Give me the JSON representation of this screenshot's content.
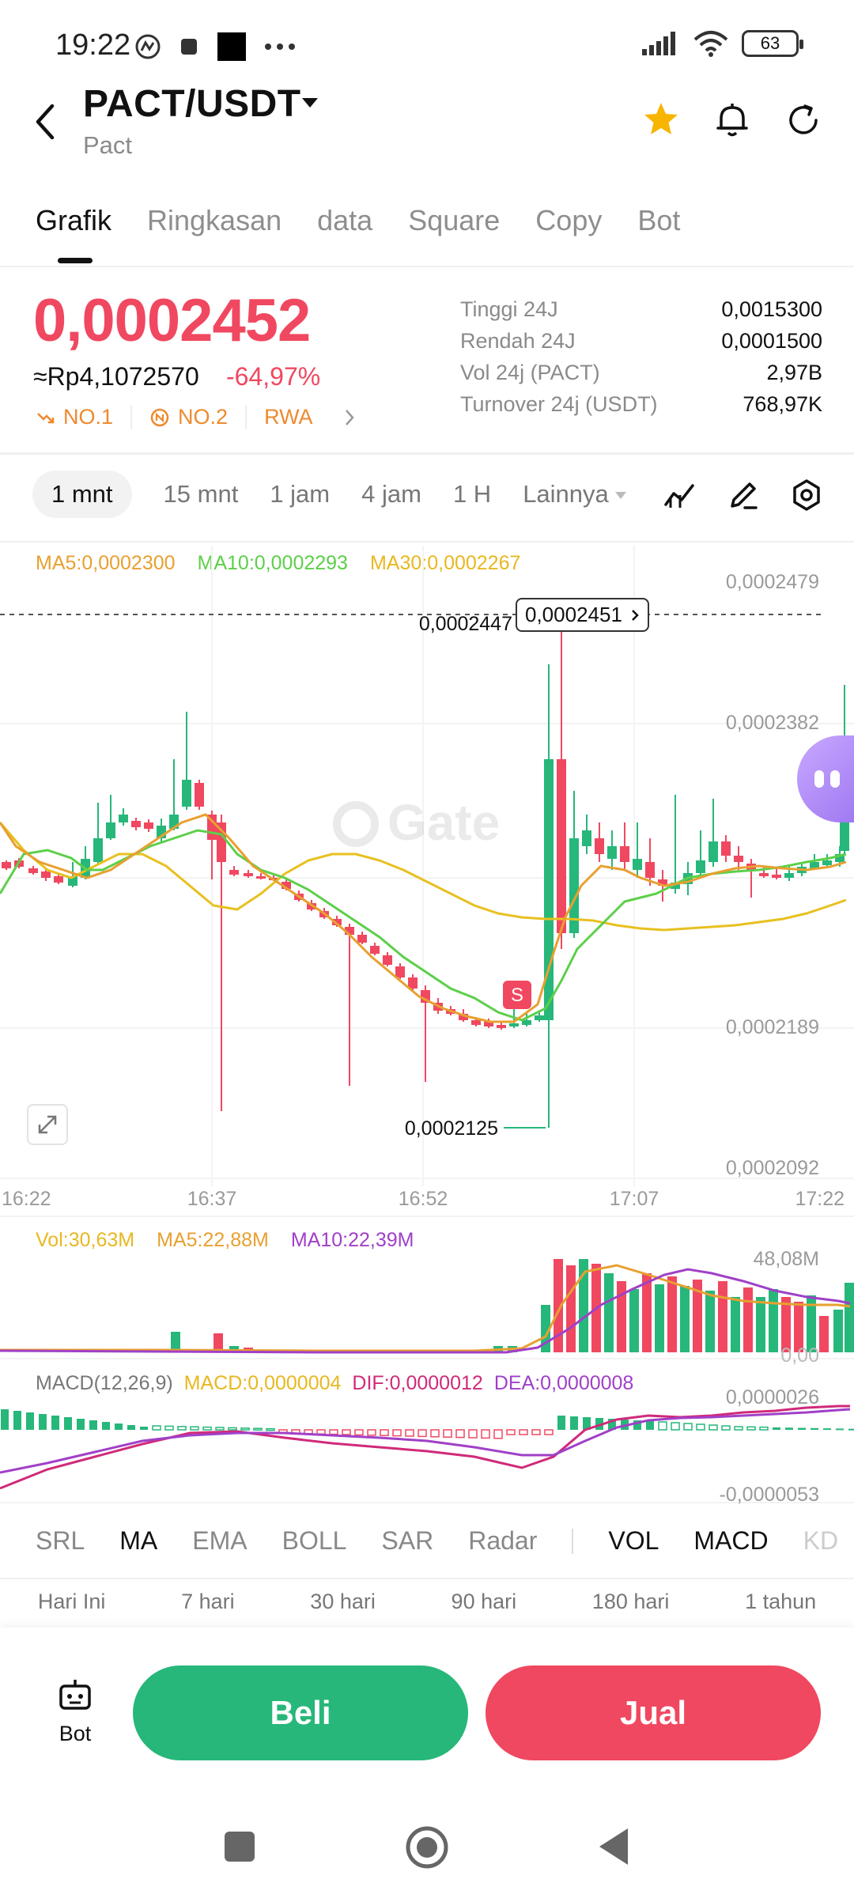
{
  "status_bar": {
    "time": "19:22",
    "battery": "63"
  },
  "header": {
    "pair": "PACT/USDT",
    "subtitle": "Pact"
  },
  "tabs": [
    {
      "label": "Grafik"
    },
    {
      "label": "Ringkasan"
    },
    {
      "label": "data"
    },
    {
      "label": "Square"
    },
    {
      "label": "Copy"
    },
    {
      "label": "Bot"
    }
  ],
  "price": {
    "last": "0,0002452",
    "idr": "≈Rp4,1072570",
    "change": "-64,97%",
    "tags": [
      "NO.1",
      "NO.2",
      "RWA"
    ]
  },
  "stats": [
    {
      "label": "Tinggi 24J",
      "value": "0,0015300"
    },
    {
      "label": "Rendah 24J",
      "value": "0,0001500"
    },
    {
      "label": "Vol 24j (PACT)",
      "value": "2,97B"
    },
    {
      "label": "Turnover 24j (USDT)",
      "value": "768,97K"
    }
  ],
  "intervals": [
    "1 mnt",
    "15 mnt",
    "1 jam",
    "4 jam",
    "1 H",
    "Lainnya"
  ],
  "ma_legend": {
    "ma5": "MA5:0,0002300",
    "ma10": "MA10:0,0002293",
    "ma30": "MA30:0,0002267"
  },
  "price_axis": [
    "0,0002479",
    "0,0002382",
    "0,0002189",
    "0,0002092"
  ],
  "price_markers": {
    "high_label": "0,0002447",
    "current_tag": "0,0002451",
    "low_label": "0,0002125",
    "signal": "S"
  },
  "time_axis": [
    "16:22",
    "16:37",
    "16:52",
    "17:07",
    "17:22"
  ],
  "vol_legend": {
    "vol": "Vol:30,63M",
    "ma5": "MA5:22,88M",
    "ma10": "MA10:22,39M"
  },
  "vol_axis": {
    "top": "48,08M",
    "bottom": "0,00"
  },
  "macd_legend": {
    "name": "MACD(12,26,9)",
    "macd": "MACD:0,0000004",
    "dif": "DIF:0,0000012",
    "dea": "DEA:0,0000008"
  },
  "macd_axis": {
    "top": "0,0000026",
    "bottom": "-0,0000053"
  },
  "indicators": [
    "SRL",
    "MA",
    "EMA",
    "BOLL",
    "SAR",
    "Radar",
    "VOL",
    "MACD",
    "KD"
  ],
  "periods": [
    "Hari Ini",
    "7 hari",
    "30 hari",
    "90 hari",
    "180 hari",
    "1 tahun"
  ],
  "actions": {
    "bot": "Bot",
    "buy": "Beli",
    "sell": "Jual"
  },
  "colors": {
    "up": "#27b77a",
    "down": "#f04860",
    "ma5": "#e8a030",
    "ma10": "#5dcf4a",
    "ma30": "#e8c020",
    "vol_ma10": "#a040c8"
  },
  "watermark": "Gate",
  "chart_data": {
    "type": "candlestick",
    "x": [
      "16:22",
      "16:37",
      "16:52",
      "17:07",
      "17:22"
    ],
    "price_range": [
      0.0002092,
      0.0002479
    ],
    "high": 0.0002447,
    "low": 0.0002125,
    "last": 0.0002451,
    "series": [
      {
        "name": "MA5",
        "last": 0.00023
      },
      {
        "name": "MA10",
        "last": 0.0002293
      },
      {
        "name": "MA30",
        "last": 0.0002267
      }
    ]
  }
}
